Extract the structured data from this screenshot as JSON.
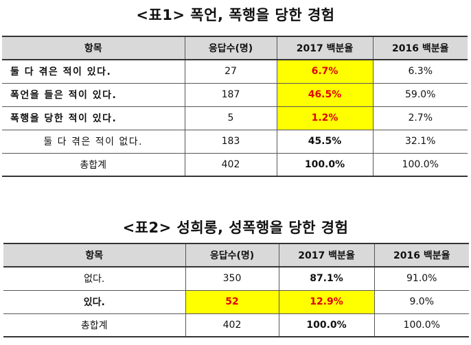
{
  "table1": {
    "title": "<표1> 폭언, 폭행을 당한 경험",
    "headers": [
      "항목",
      "응답수(명)",
      "2017 백분율",
      "2016 백분율"
    ],
    "rows": [
      {
        "item": "둘 다 겪은 적이 있다.",
        "count": "27",
        "pct2017": "6.7%",
        "pct2016": "6.3%"
      },
      {
        "item": "폭언을 들은 적이 있다.",
        "count": "187",
        "pct2017": "46.5%",
        "pct2016": "59.0%"
      },
      {
        "item": "폭행을 당한 적이 있다.",
        "count": "5",
        "pct2017": "1.2%",
        "pct2016": "2.7%"
      },
      {
        "item": "둘 다 겪은 적이 없다.",
        "count": "183",
        "pct2017": "45.5%",
        "pct2016": "32.1%"
      },
      {
        "item": "총합계",
        "count": "402",
        "pct2017": "100.0%",
        "pct2016": "100.0%"
      }
    ]
  },
  "table2": {
    "title": "<표2> 성희롱, 성폭행을 당한 경험",
    "headers": [
      "항목",
      "응답수(명)",
      "2017 백분율",
      "2016 백분율"
    ],
    "rows": [
      {
        "item": "없다.",
        "count": "350",
        "pct2017": "87.1%",
        "pct2016": "91.0%"
      },
      {
        "item": "있다.",
        "count": "52",
        "pct2017": "12.9%",
        "pct2016": "9.0%"
      },
      {
        "item": "총합계",
        "count": "402",
        "pct2017": "100.0%",
        "pct2016": "100.0%"
      }
    ]
  },
  "colors": {
    "header_bg": "#d9d9d9",
    "highlight_bg": "#ffff00",
    "highlight_text": "#e00000"
  }
}
